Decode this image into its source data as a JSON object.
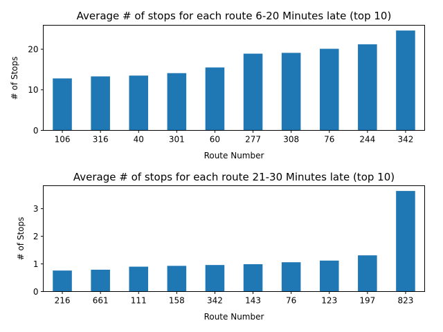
{
  "chart_data": [
    {
      "type": "bar",
      "title": "Average # of stops for each route 6-20 Minutes late (top 10)",
      "xlabel": "Route Number",
      "ylabel": "# of Stops",
      "categories": [
        "106",
        "316",
        "40",
        "301",
        "60",
        "277",
        "308",
        "76",
        "244",
        "342"
      ],
      "values": [
        12.8,
        13.3,
        13.5,
        14.1,
        15.5,
        18.9,
        19.1,
        20.1,
        21.2,
        24.6
      ],
      "ylim": [
        0,
        25.9
      ],
      "yticks": [
        0,
        10,
        20
      ],
      "grid": false,
      "color": "#1f77b4"
    },
    {
      "type": "bar",
      "title": "Average # of stops for each route 21-30 Minutes late (top 10)",
      "xlabel": "Route Number",
      "ylabel": "# of Stops",
      "categories": [
        "216",
        "661",
        "111",
        "158",
        "342",
        "143",
        "76",
        "123",
        "197",
        "823"
      ],
      "values": [
        0.76,
        0.79,
        0.9,
        0.93,
        0.96,
        0.99,
        1.06,
        1.12,
        1.31,
        3.64
      ],
      "ylim": [
        0,
        3.83
      ],
      "yticks": [
        0,
        1,
        2,
        3
      ],
      "grid": false,
      "color": "#1f77b4"
    }
  ]
}
